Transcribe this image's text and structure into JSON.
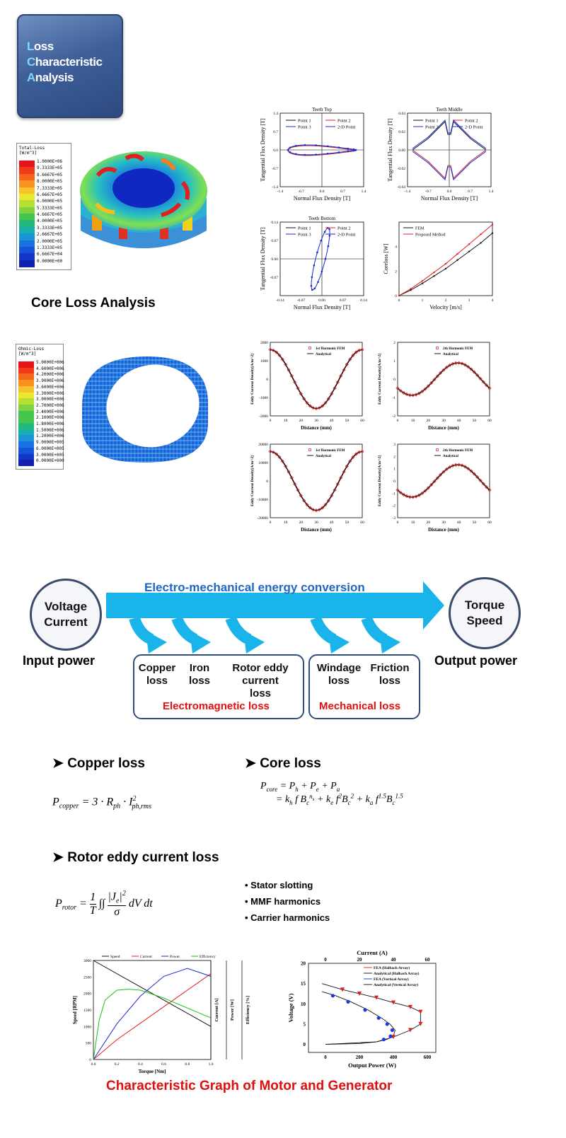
{
  "badge": {
    "lines": [
      [
        "L",
        "oss"
      ],
      [
        "C",
        "haracteristic"
      ],
      [
        "A",
        "nalysis"
      ]
    ]
  },
  "legend1": {
    "title": "Total-Loss\n[W/m^3]",
    "labels": [
      "1.0000E+06",
      "9.3333E+05",
      "8.6667E+05",
      "8.0000E+05",
      "7.3333E+05",
      "6.6667E+05",
      "6.0000E+05",
      "5.3333E+05",
      "4.6667E+05",
      "4.0000E+05",
      "3.3333E+05",
      "2.6667E+05",
      "2.0000E+05",
      "1.3333E+05",
      "6.6667E+04",
      "0.0000E+00"
    ]
  },
  "legend2": {
    "title": "Ohmic-Loss\n[W/m^3]",
    "labels": [
      "5.0000E+006",
      "4.6000E+006",
      "4.2000E+006",
      "3.9000E+006",
      "3.6000E+006",
      "3.3000E+006",
      "3.0000E+006",
      "2.7000E+006",
      "2.4000E+006",
      "2.1000E+006",
      "1.8000E+006",
      "1.5000E+006",
      "1.2000E+006",
      "9.0000E+005",
      "6.0000E+005",
      "3.0000E+005",
      "0.0000E+000"
    ]
  },
  "colors": {
    "legend_scale": [
      "#e8141c",
      "#f03a1a",
      "#f6651c",
      "#f9921f",
      "#f8c22b",
      "#e9e82e",
      "#b8e034",
      "#7fd240",
      "#45c450",
      "#22b97a",
      "#19aeb0",
      "#1a94d6",
      "#1873e0",
      "#1553d8",
      "#1336c8",
      "#1020b0"
    ],
    "accent": "#e01010",
    "arrow": "#18b4ea",
    "box": "#2f4f7a"
  },
  "core_loss_title": "Core Loss Analysis",
  "chart_data": [
    {
      "type": "line",
      "title": "Teeth Top",
      "xlabel": "Normal Flux Density [T]",
      "ylabel": "Tangential Flux Density [T]",
      "xlim": [
        -1.4,
        1.4
      ],
      "ylim": [
        -1.4,
        1.4
      ],
      "xticks": [
        "-1.4",
        "-0.7",
        "0.0",
        "0.7",
        "1.4"
      ],
      "yticks": [
        "1.4",
        "0.7",
        "0.0",
        "-0.7",
        "-1.4"
      ],
      "legend": [
        "Point 1",
        "Point 2",
        "Point 3",
        "2-D Point"
      ]
    },
    {
      "type": "line",
      "title": "Teeth Middle",
      "xlabel": "Normal Flux Density [T]",
      "ylabel": "Tangential Flux Density [T]",
      "xlim": [
        -1.4,
        1.4
      ],
      "ylim": [
        -0.04,
        0.04
      ],
      "xticks": [
        "-1.4",
        "-0.7",
        "0.0",
        "0.7",
        "1.4"
      ],
      "yticks": [
        "0.04",
        "0.02",
        "0.00",
        "-0.02",
        "-0.04"
      ],
      "legend": [
        "Point 1",
        "Point 2",
        "Point 3",
        "2-D Point"
      ]
    },
    {
      "type": "line",
      "title": "Teeth Bottom",
      "xlabel": "Normal Flux Density [T]",
      "ylabel": "Tangential Flux Density [T]",
      "xlim": [
        -0.14,
        0.14
      ],
      "ylim": [
        -0.14,
        0.14
      ],
      "xticks": [
        "-0.14",
        "-0.07",
        "0.00",
        "0.07",
        "0.14"
      ],
      "yticks": [
        "0.14",
        "0.07",
        "0.00",
        "-0.07"
      ],
      "legend": [
        "Point 1",
        "Point 2",
        "Point 3",
        "2-D Point"
      ]
    },
    {
      "type": "line",
      "title": "",
      "xlabel": "Velocity [m/s]",
      "ylabel": "Coreloss [W]",
      "xlim": [
        0,
        4
      ],
      "ylim": [
        0,
        6
      ],
      "xticks": [
        "0",
        "1",
        "2",
        "3",
        "4"
      ],
      "yticks": [
        "4",
        "2",
        "0"
      ],
      "legend": [
        "FEM",
        "Proposed Method"
      ],
      "series": [
        {
          "name": "FEM",
          "x": [
            0,
            0.5,
            1,
            1.5,
            2,
            2.5,
            3,
            3.5,
            4
          ],
          "y": [
            0,
            0.45,
            1.0,
            1.6,
            2.2,
            2.9,
            3.6,
            4.3,
            5.1
          ]
        },
        {
          "name": "Proposed Method",
          "x": [
            0,
            0.5,
            1,
            1.5,
            2,
            2.5,
            3,
            3.5,
            4
          ],
          "y": [
            0,
            0.55,
            1.2,
            1.9,
            2.6,
            3.4,
            4.2,
            5.0,
            5.8
          ]
        }
      ]
    },
    {
      "type": "line",
      "title": "",
      "xlabel": "Distance (mm)",
      "ylabel": "Eddy Current Density[A/m^2]",
      "legend": [
        "1st Harmonic FEM",
        "Analytical"
      ],
      "xticks": [
        "0",
        "10",
        "20",
        "30",
        "40",
        "50",
        "60"
      ],
      "yticks": [
        "2000",
        "1000",
        "0",
        "-1000",
        "-2000"
      ]
    },
    {
      "type": "line",
      "title": "",
      "xlabel": "Distance (mm)",
      "ylabel": "Eddy Current Density[A/m^2]",
      "legend": [
        "2th Harmonic FEM",
        "Analytical"
      ],
      "xticks": [
        "0",
        "10",
        "20",
        "30",
        "40",
        "50",
        "60"
      ],
      "yticks": [
        "2",
        "1",
        "0",
        "-1",
        "-2"
      ]
    },
    {
      "type": "line",
      "title": "",
      "xlabel": "Distance (mm)",
      "ylabel": "Eddy Current Density[A/m^2]",
      "legend": [
        "1st Harmonic FEM",
        "Analytical"
      ],
      "xticks": [
        "0",
        "10",
        "20",
        "30",
        "40",
        "50",
        "60"
      ],
      "yticks": [
        "20000",
        "10000",
        "0",
        "-10000",
        "-20000"
      ]
    },
    {
      "type": "line",
      "title": "",
      "xlabel": "Distance (mm)",
      "ylabel": "Eddy Current Density[A/m^2]",
      "legend": [
        "2th Harmonic FEM",
        "Analytical"
      ],
      "xticks": [
        "0",
        "10",
        "20",
        "30",
        "40",
        "50",
        "60"
      ],
      "yticks": [
        "3",
        "2",
        "1",
        "0",
        "-1",
        "-2",
        "-3"
      ]
    },
    {
      "type": "line",
      "title": "",
      "xlabel": "Torque [Nm]",
      "ylabel": "Speed [RPM]",
      "legend": [
        "Speed",
        "Current",
        "Power",
        "Efficiency"
      ],
      "extra_ylabels": [
        "Current [A]",
        "Power [W]",
        "Efficiency [%]"
      ],
      "xticks": [
        "0.0",
        "0.2",
        "0.4",
        "0.6",
        "0.8",
        "1.0"
      ],
      "yticks": [
        "3000",
        "2500",
        "2000",
        "1500",
        "1000",
        "500",
        "0"
      ],
      "series": [
        {
          "name": "Speed",
          "x": [
            0,
            1
          ],
          "y": [
            3000,
            1000
          ]
        },
        {
          "name": "Current",
          "x": [
            0,
            0.2,
            0.4,
            0.6,
            0.8,
            1.0
          ],
          "y": [
            0,
            6,
            11,
            16,
            21,
            26
          ]
        },
        {
          "name": "Power",
          "x": [
            0,
            0.2,
            0.4,
            0.6,
            0.8,
            1.0
          ],
          "y": [
            0,
            180,
            320,
            420,
            460,
            420
          ]
        },
        {
          "name": "Efficiency",
          "x": [
            0,
            0.05,
            0.1,
            0.2,
            0.3,
            0.4,
            0.6,
            0.8,
            1.0
          ],
          "y": [
            0,
            40,
            60,
            70,
            71,
            70,
            62,
            52,
            42
          ]
        }
      ]
    },
    {
      "type": "line",
      "title": "",
      "xlabel": "Output Power (W)",
      "ylabel": "Voltage (V)",
      "x2label": "Current (A)",
      "xlim": [
        -100,
        650
      ],
      "ylim": [
        -2,
        20
      ],
      "xticks": [
        "0",
        "200",
        "400",
        "600"
      ],
      "yticks": [
        "20",
        "15",
        "10",
        "5",
        "0"
      ],
      "x2ticks": [
        "0",
        "20",
        "40",
        "60"
      ],
      "legend": [
        "FEA    (Halbach Array)",
        "Analytical   (Halbach Array)",
        "FEA    (Vertical Array)",
        "Analytical   (Vertical Array)"
      ]
    }
  ],
  "flow": {
    "banner": "Electro-mechanical energy conversion",
    "input_circle": [
      "Voltage",
      "Current"
    ],
    "output_circle": [
      "Torque",
      "Speed"
    ],
    "input_label": "Input power",
    "output_label": "Output power",
    "losses": [
      [
        "Copper",
        "loss"
      ],
      [
        "Iron",
        "loss"
      ],
      [
        "Rotor eddy",
        "current",
        "loss"
      ],
      [
        "Windage",
        "loss"
      ],
      [
        "Friction",
        "loss"
      ]
    ],
    "group1": "Electromagnetic loss",
    "group2": "Mechanical loss"
  },
  "sections": {
    "copper": "Copper loss",
    "core": "Core loss",
    "rotor": "Rotor eddy current loss"
  },
  "bullets": [
    "Stator slotting",
    "MMF harmonics",
    "Carrier harmonics"
  ],
  "final_title": "Characteristic Graph of Motor and Generator"
}
